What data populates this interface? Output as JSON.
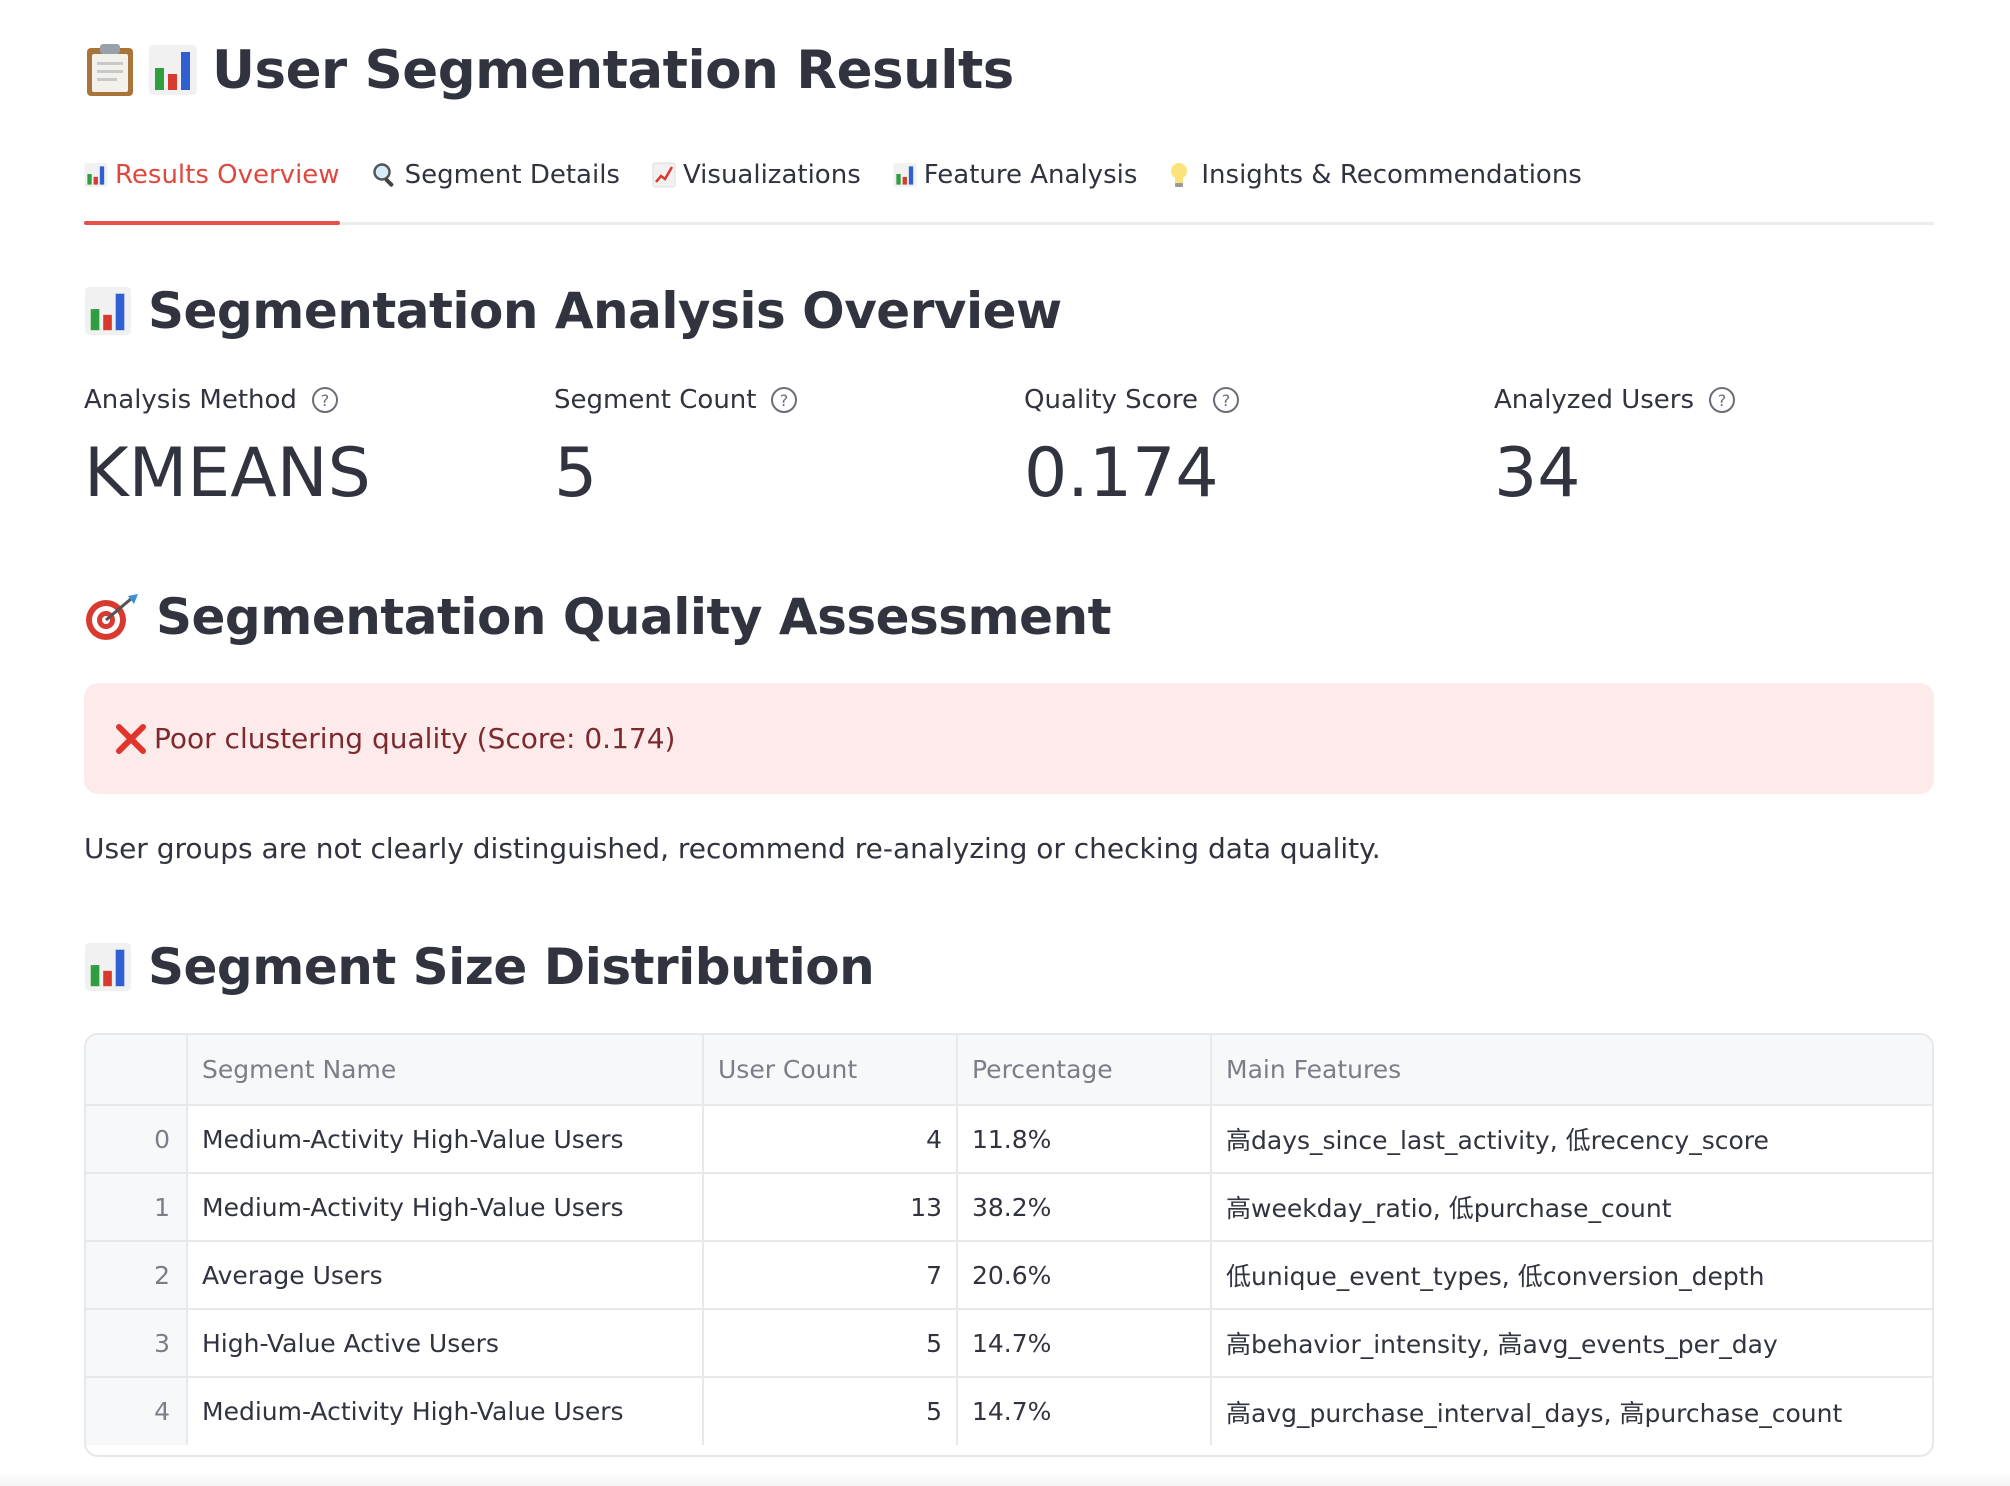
{
  "page": {
    "title": "User Segmentation Results"
  },
  "tabs": [
    {
      "label": "Results Overview",
      "icon": "bar-chart-icon",
      "active": true
    },
    {
      "label": "Segment Details",
      "icon": "magnifier-icon",
      "active": false
    },
    {
      "label": "Visualizations",
      "icon": "line-chart-icon",
      "active": false
    },
    {
      "label": "Feature Analysis",
      "icon": "bar-chart-icon",
      "active": false
    },
    {
      "label": "Insights & Recommendations",
      "icon": "lightbulb-icon",
      "active": false
    }
  ],
  "overview": {
    "heading": "Segmentation Analysis Overview",
    "metrics": [
      {
        "label": "Analysis Method",
        "value": "KMEANS"
      },
      {
        "label": "Segment Count",
        "value": "5"
      },
      {
        "label": "Quality Score",
        "value": "0.174"
      },
      {
        "label": "Analyzed Users",
        "value": "34"
      }
    ]
  },
  "quality": {
    "heading": "Segmentation Quality Assessment",
    "alert_text": "Poor clustering quality (Score: 0.174)",
    "description": "User groups are not clearly distinguished, recommend re-analyzing or checking data quality."
  },
  "distribution": {
    "heading": "Segment Size Distribution",
    "columns": [
      "",
      "Segment Name",
      "User Count",
      "Percentage",
      "Main Features"
    ],
    "rows": [
      {
        "index": "0",
        "name": "Medium-Activity High-Value Users",
        "count": "4",
        "percentage": "11.8%",
        "features": "高days_since_last_activity, 低recency_score"
      },
      {
        "index": "1",
        "name": "Medium-Activity High-Value Users",
        "count": "13",
        "percentage": "38.2%",
        "features": "高weekday_ratio, 低purchase_count"
      },
      {
        "index": "2",
        "name": "Average Users",
        "count": "7",
        "percentage": "20.6%",
        "features": "低unique_event_types, 低conversion_depth"
      },
      {
        "index": "3",
        "name": "High-Value Active Users",
        "count": "5",
        "percentage": "14.7%",
        "features": "高behavior_intensity, 高avg_events_per_day"
      },
      {
        "index": "4",
        "name": "Medium-Activity High-Value Users",
        "count": "5",
        "percentage": "14.7%",
        "features": "高avg_purchase_interval_days, 高purchase_count"
      }
    ]
  },
  "colors": {
    "accent": "#e0483f",
    "text": "#31333f",
    "muted": "#7b7e88",
    "alert_bg": "#fdebec",
    "alert_text": "#7d2a2e"
  }
}
